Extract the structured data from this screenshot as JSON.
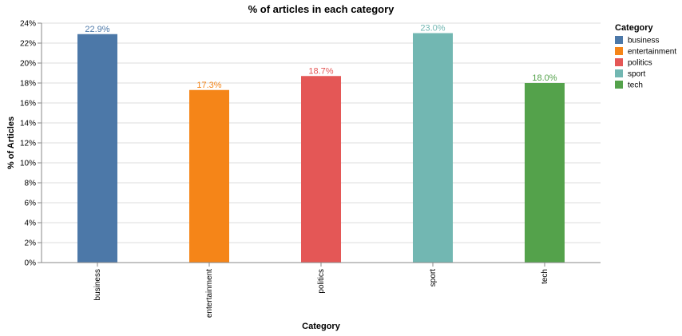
{
  "chart_data": {
    "type": "bar",
    "title": "% of articles in each category",
    "x_label": "Category",
    "y_label": "% of Articles",
    "categories": [
      "business",
      "entertainment",
      "politics",
      "sport",
      "tech"
    ],
    "values": [
      22.9,
      17.3,
      18.7,
      23.0,
      18.0
    ],
    "value_labels": [
      "22.9%",
      "17.3%",
      "18.7%",
      "23.0%",
      "18.0%"
    ],
    "colors": [
      "#4c78a8",
      "#f58518",
      "#e45756",
      "#72b7b2",
      "#54a24b"
    ],
    "ylim": [
      0,
      24
    ],
    "yticks": [
      {
        "value": 0,
        "label": "0%"
      },
      {
        "value": 2,
        "label": "2%"
      },
      {
        "value": 4,
        "label": "4%"
      },
      {
        "value": 6,
        "label": "6%"
      },
      {
        "value": 8,
        "label": "8%"
      },
      {
        "value": 10,
        "label": "10%"
      },
      {
        "value": 12,
        "label": "12%"
      },
      {
        "value": 14,
        "label": "14%"
      },
      {
        "value": 16,
        "label": "16%"
      },
      {
        "value": 18,
        "label": "18%"
      },
      {
        "value": 20,
        "label": "20%"
      },
      {
        "value": 22,
        "label": "22%"
      },
      {
        "value": 24,
        "label": "24%"
      }
    ],
    "grid": true,
    "legend_title": "Category",
    "legend_position": "right"
  }
}
